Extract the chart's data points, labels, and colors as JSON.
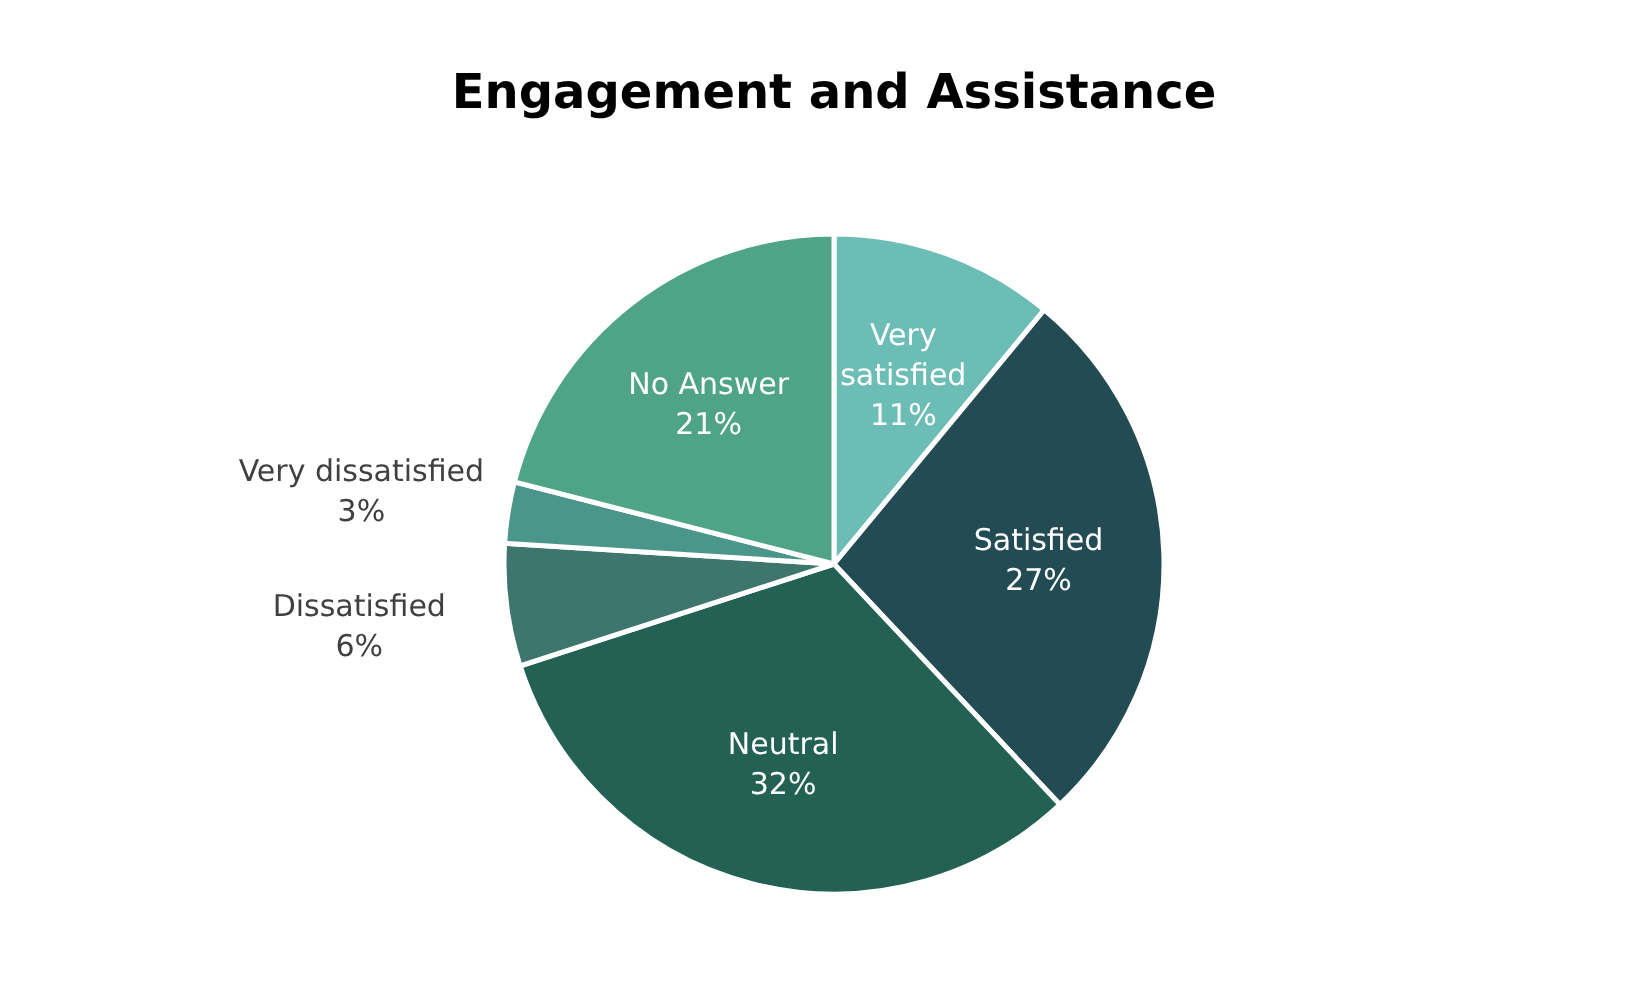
{
  "chart_data": {
    "type": "pie",
    "title": "Engagement and Assistance",
    "categories": [
      "Very satisfied",
      "Satisfied",
      "Neutral",
      "Dissatisfied",
      "Very dissatisfied",
      "No Answer"
    ],
    "values": [
      11,
      27,
      32,
      6,
      3,
      21
    ],
    "value_labels": [
      "11%",
      "27%",
      "32%",
      "6%",
      "3%",
      "21%"
    ],
    "colors": [
      "#6cbdb6",
      "#234b53",
      "#226153",
      "#3e766d",
      "#4b968a",
      "#4fa488"
    ]
  }
}
